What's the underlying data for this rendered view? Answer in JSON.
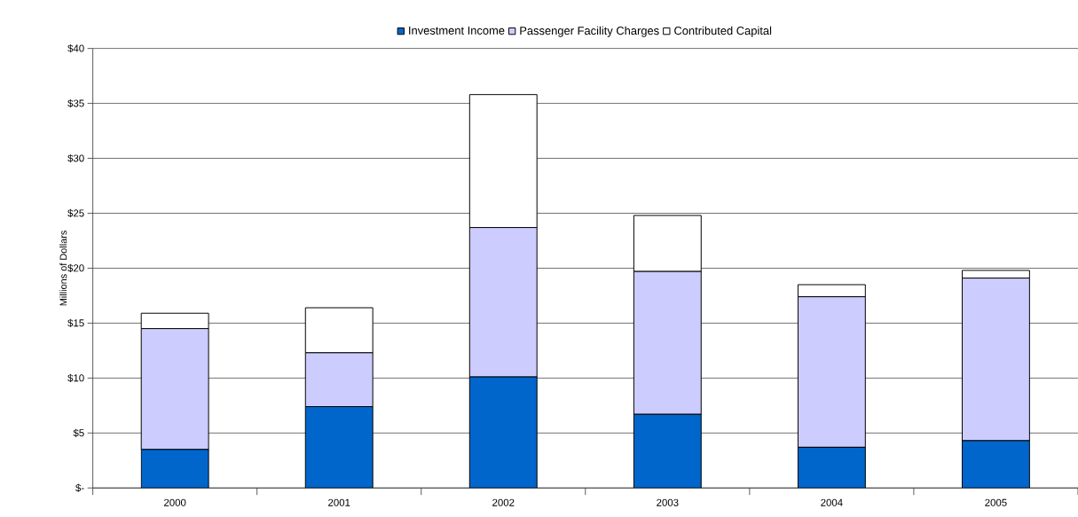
{
  "chart_data": {
    "type": "bar",
    "stacked": true,
    "ylabel": "Millions of Dollars",
    "categories": [
      "2000",
      "2001",
      "2002",
      "2003",
      "2004",
      "2005"
    ],
    "series": [
      {
        "name": "Investment Income",
        "color": "#0066cc",
        "values": [
          3.5,
          7.4,
          10.1,
          6.7,
          3.7,
          4.3
        ]
      },
      {
        "name": "Passenger Facility Charges",
        "color": "#ccccff",
        "values": [
          11.0,
          4.9,
          13.6,
          13.0,
          13.7,
          14.8
        ]
      },
      {
        "name": "Contributed Capital",
        "color": "#ffffff",
        "values": [
          1.4,
          4.1,
          12.1,
          5.1,
          1.1,
          0.7
        ]
      }
    ],
    "ylim": [
      0,
      40
    ],
    "yticks": [
      {
        "value": 0,
        "label": "$-"
      },
      {
        "value": 5,
        "label": "$5"
      },
      {
        "value": 10,
        "label": "$10"
      },
      {
        "value": 15,
        "label": "$15"
      },
      {
        "value": 20,
        "label": "$20"
      },
      {
        "value": 25,
        "label": "$25"
      },
      {
        "value": 30,
        "label": "$30"
      },
      {
        "value": 35,
        "label": "$35"
      },
      {
        "value": 40,
        "label": "$40"
      }
    ],
    "grid": "y",
    "legend": "top"
  }
}
